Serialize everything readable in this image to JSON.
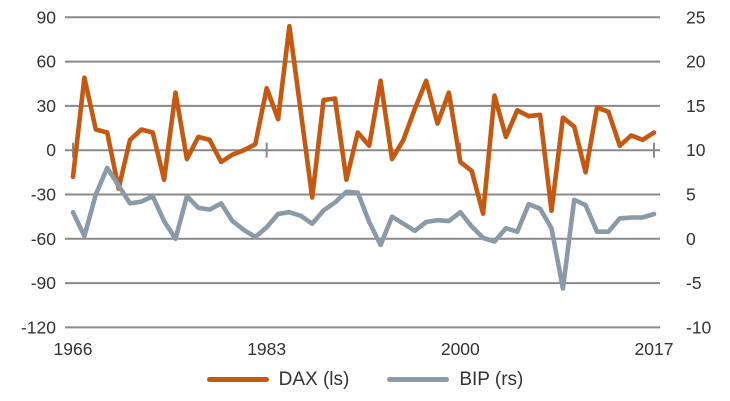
{
  "chart_data": {
    "type": "line",
    "title": "",
    "x": [
      1966,
      1967,
      1968,
      1969,
      1970,
      1971,
      1972,
      1973,
      1974,
      1975,
      1976,
      1977,
      1978,
      1979,
      1980,
      1981,
      1982,
      1983,
      1984,
      1985,
      1986,
      1987,
      1988,
      1989,
      1990,
      1991,
      1992,
      1993,
      1994,
      1995,
      1996,
      1997,
      1998,
      1999,
      2000,
      2001,
      2002,
      2003,
      2004,
      2005,
      2006,
      2007,
      2008,
      2009,
      2010,
      2011,
      2012,
      2013,
      2014,
      2015,
      2016,
      2017
    ],
    "x_tick_labels": [
      "1966",
      "1983",
      "2000",
      "2017"
    ],
    "x_tick_years": [
      1966,
      1983,
      2000,
      2017
    ],
    "left_axis": {
      "ticks": [
        90,
        60,
        30,
        0,
        -30,
        -60,
        -90,
        -120
      ],
      "range": [
        -120,
        90
      ]
    },
    "right_axis": {
      "ticks": [
        25,
        20,
        15,
        10,
        5,
        0,
        -5,
        -10
      ],
      "range": [
        -10,
        25
      ]
    },
    "grid": true,
    "legend_position": "bottom",
    "series": [
      {
        "name": "DAX (ls)",
        "axis": "left",
        "color": "#C65911",
        "values": [
          -18,
          49,
          14,
          12,
          -26,
          7,
          14,
          12,
          -20,
          39,
          -6,
          9,
          7,
          -8,
          -3,
          0,
          4,
          42,
          21,
          84,
          26,
          -32,
          34,
          35,
          -20,
          12,
          3,
          47,
          -6,
          7,
          28,
          47,
          18,
          39,
          -8,
          -14,
          -43,
          37,
          9,
          27,
          23,
          24,
          -41,
          22,
          16,
          -15,
          29,
          26,
          3,
          10,
          7,
          12
        ]
      },
      {
        "name": "BIP (rs)",
        "axis": "right",
        "color": "#8A9AA9",
        "values": [
          3.0,
          0.3,
          5.0,
          8.0,
          6.0,
          4.0,
          4.2,
          4.8,
          2.0,
          0.0,
          4.8,
          3.5,
          3.3,
          4.0,
          2.0,
          1.0,
          0.2,
          1.3,
          2.8,
          3.0,
          2.6,
          1.7,
          3.2,
          4.1,
          5.3,
          5.2,
          1.9,
          -0.7,
          2.5,
          1.7,
          0.9,
          1.9,
          2.1,
          2.0,
          3.0,
          1.4,
          0.1,
          -0.3,
          1.2,
          0.8,
          3.9,
          3.4,
          1.2,
          -5.6,
          4.4,
          3.8,
          0.8,
          0.8,
          2.3,
          2.4,
          2.4,
          2.8
        ]
      }
    ]
  },
  "colors": {
    "dax": "#C65911",
    "bip": "#8A9AA9",
    "grid": "#8A8A8A",
    "text": "#333333",
    "background": "#FFFFFF"
  }
}
